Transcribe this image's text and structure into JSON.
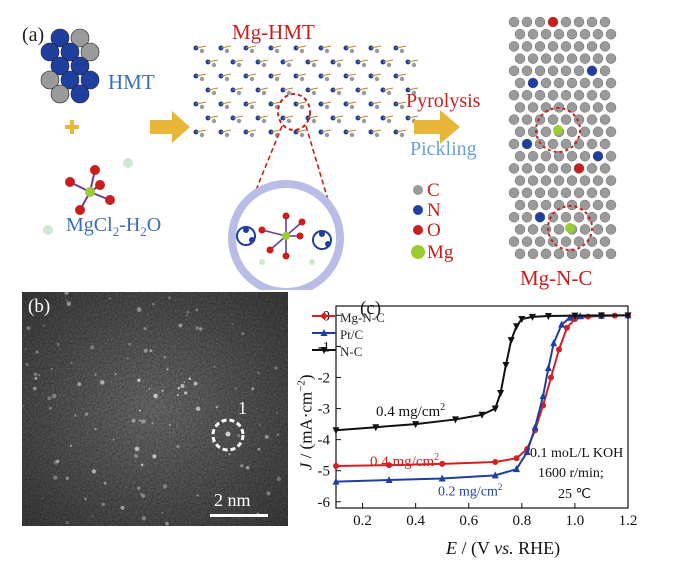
{
  "panel_a": {
    "tag": "(a)",
    "hmt_label": "HMT",
    "plus": "+",
    "mgcl2_main": "MgCl",
    "mgcl2_sub": "2",
    "mgcl2_tail": "-H",
    "mgcl2_sub2": "2",
    "mgcl2_end": "O",
    "mg_hmt_title": "Mg-HMT",
    "pyrolysis": "Pyrolysis",
    "pickling": "Pickling",
    "legend": [
      {
        "symbol": "C",
        "color": "#9a9a9a"
      },
      {
        "symbol": "N",
        "color": "#1f3f9f"
      },
      {
        "symbol": "O",
        "color": "#c81e1e"
      },
      {
        "symbol": "Mg",
        "color": "#9acd32"
      }
    ],
    "mg_n_c_title": "Mg-N-C",
    "colors": {
      "arrow": "#e8b73a",
      "title_red": "#c8201e",
      "label_blue": "#3a6fb5",
      "pickling_blue": "#6aa0d8"
    }
  },
  "panel_b": {
    "tag": "(b)",
    "marker": "1",
    "scale": "2 nm"
  },
  "chart_data": {
    "type": "line",
    "panel_tag": "(c)",
    "xlabel_main": "E",
    "xlabel_rest": " / (V ",
    "xlabel_vs": "vs.",
    "xlabel_end": " RHE)",
    "ylabel_main": "J",
    "ylabel_rest": " / (mA·cm",
    "ylabel_sup": "−2",
    "ylabel_end": ")",
    "xlim": [
      0.1,
      1.2
    ],
    "ylim": [
      -6.2,
      0.3
    ],
    "x_ticks": [
      "0.2",
      "0.4",
      "0.6",
      "0.8",
      "1.0",
      "1.2"
    ],
    "y_ticks": [
      "0",
      "-1",
      "-2",
      "-3",
      "-4",
      "-5",
      "-6"
    ],
    "series": [
      {
        "name": "Mg-N-C",
        "color": "#d42020",
        "marker": "circle",
        "x": [
          0.1,
          0.3,
          0.5,
          0.7,
          0.78,
          0.82,
          0.85,
          0.88,
          0.91,
          0.94,
          0.97,
          1.0,
          1.05,
          1.1,
          1.15,
          1.2
        ],
        "y": [
          -4.85,
          -4.82,
          -4.78,
          -4.72,
          -4.6,
          -4.3,
          -3.7,
          -2.9,
          -2.0,
          -1.1,
          -0.4,
          -0.12,
          -0.04,
          -0.02,
          -0.01,
          0
        ]
      },
      {
        "name": "Pt/C",
        "color": "#1f3fa0",
        "marker": "triangle",
        "x": [
          0.1,
          0.3,
          0.5,
          0.7,
          0.78,
          0.82,
          0.85,
          0.88,
          0.9,
          0.92,
          0.95,
          0.98,
          1.02,
          1.1,
          1.2
        ],
        "y": [
          -5.35,
          -5.3,
          -5.25,
          -5.15,
          -4.95,
          -4.4,
          -3.6,
          -2.6,
          -1.7,
          -0.9,
          -0.3,
          -0.08,
          -0.03,
          -0.01,
          0
        ]
      },
      {
        "name": "N-C",
        "color": "#111111",
        "marker": "triangle-down",
        "x": [
          0.1,
          0.25,
          0.4,
          0.55,
          0.65,
          0.7,
          0.72,
          0.74,
          0.76,
          0.78,
          0.8,
          0.84,
          0.9,
          1.0,
          1.1,
          1.2
        ],
        "y": [
          -3.7,
          -3.6,
          -3.5,
          -3.35,
          -3.2,
          -3.0,
          -2.5,
          -1.6,
          -0.8,
          -0.35,
          -0.12,
          -0.05,
          -0.02,
          -0.01,
          0,
          0
        ]
      }
    ],
    "annotations": {
      "nc_loading": "0.4 mg/cm",
      "nc_loading_sup": "2",
      "mgnc_loading": "0.4 mg/cm",
      "mgnc_loading_sup": "2",
      "ptc_loading": "0.2 mg/cm",
      "ptc_loading_sup": "2",
      "cond1": "0.1 moL/L KOH",
      "cond2": "1600 r/min;",
      "cond3": "25 ℃"
    },
    "legend_placement": "top-left",
    "grid": false
  }
}
